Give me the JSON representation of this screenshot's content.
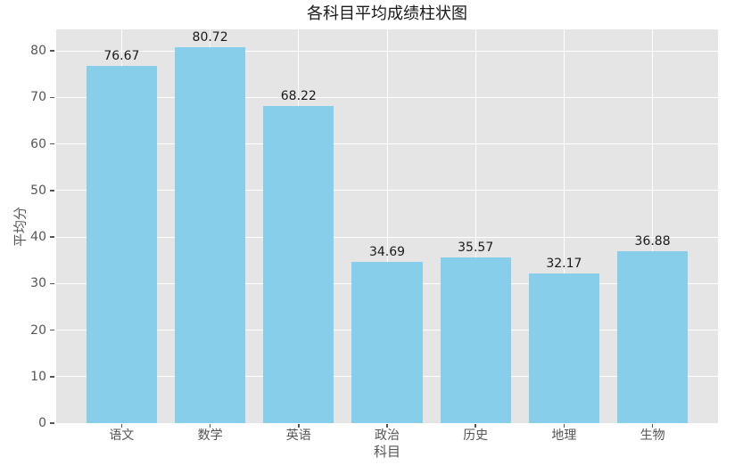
{
  "chart_data": {
    "type": "bar",
    "title": "各科目平均成绩柱状图",
    "xlabel": "科目",
    "ylabel": "平均分",
    "categories": [
      "语文",
      "数学",
      "英语",
      "政治",
      "历史",
      "地理",
      "生物"
    ],
    "values": [
      76.67,
      80.72,
      68.22,
      34.69,
      35.57,
      32.17,
      36.88
    ],
    "bar_labels": [
      "76.67",
      "80.72",
      "68.22",
      "34.69",
      "35.57",
      "32.17",
      "36.88"
    ],
    "yticks": [
      0,
      10,
      20,
      30,
      40,
      50,
      60,
      70,
      80
    ],
    "ylim": [
      0,
      84.6
    ],
    "xlim_pad": 0.74,
    "bar_width_units": 0.8,
    "grid": "on",
    "legend": "none",
    "style": {
      "bar_color": "#87CEEB",
      "plot_background": "#E5E5E5",
      "grid_color": "#FFFFFF",
      "tick_color": "#555555",
      "label_color": "#555555",
      "title_color": "#1A1A1A",
      "value_label_color": "#1A1A1A",
      "figure_background": "#FFFFFF"
    }
  }
}
